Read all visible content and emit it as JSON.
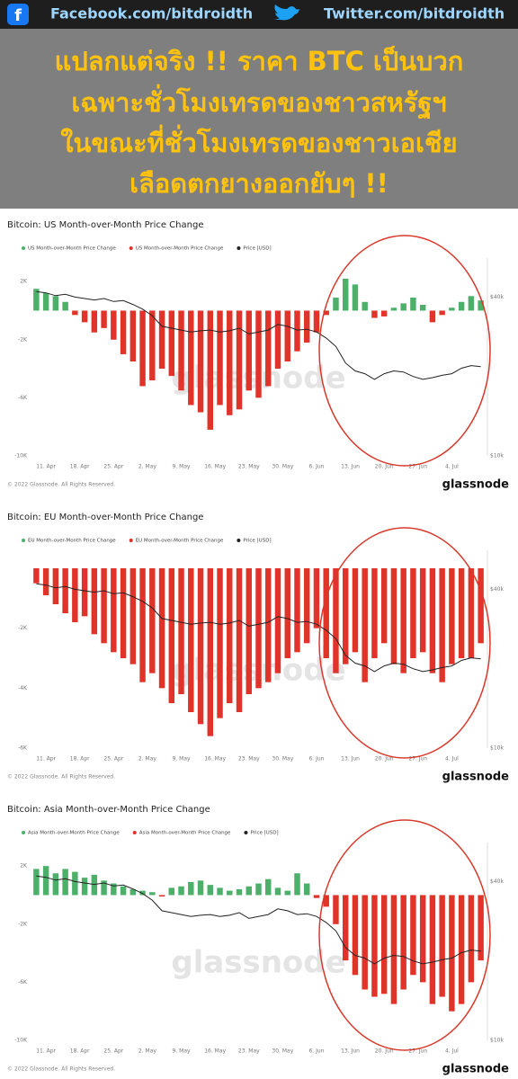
{
  "header": {
    "facebook": "Facebook.com/bitdroidth",
    "twitter": "Twitter.com/bitdroidth",
    "headline": [
      "แปลกแต่จริง !! ราคา BTC เป็นบวก",
      "เฉพาะชั่วโมงเทรดของชาวสหรัฐฯ",
      "ในขณะที่ชั่วโมงเทรดของชาวเอเชีย",
      "เลือดตกยางออกยับๆ !!"
    ]
  },
  "chart_data": [
    {
      "type": "bar",
      "title": "Bitcoin: US Month-over-Month Price Change",
      "watermark": "glassnode",
      "footer": "© 2022 Glassnode. All Rights Reserved.",
      "brand": "glassnode",
      "xlim": [
        -0.5,
        46.5
      ],
      "xticks": [
        {
          "value": 1,
          "label": "11. Apr"
        },
        {
          "value": 4.5,
          "label": "18. Apr"
        },
        {
          "value": 8,
          "label": "25. Apr"
        },
        {
          "value": 11.5,
          "label": "2. May"
        },
        {
          "value": 15,
          "label": "9. May"
        },
        {
          "value": 18.5,
          "label": "16. May"
        },
        {
          "value": 22,
          "label": "23. May"
        },
        {
          "value": 25.5,
          "label": "30. May"
        },
        {
          "value": 29,
          "label": "6. Jun"
        },
        {
          "value": 32.5,
          "label": "13. Jun"
        },
        {
          "value": 36,
          "label": "20. Jun"
        },
        {
          "value": 39.5,
          "label": "27. Jun"
        },
        {
          "value": 43,
          "label": "4. Jul"
        }
      ],
      "ylim": [
        -10000,
        3000
      ],
      "yticks": [
        {
          "value": 2000,
          "label": "2K"
        },
        {
          "value": -2000,
          "label": "-2K"
        },
        {
          "value": -6000,
          "label": "-6K"
        },
        {
          "value": -10000,
          "label": "-10K"
        }
      ],
      "y2lim": [
        10000,
        52000
      ],
      "y2log": true,
      "y2ticks": [
        {
          "value": 10000,
          "label": "$10k"
        },
        {
          "value": 40000,
          "label": "$40k"
        }
      ],
      "series": [
        {
          "name": "US Month-over-Month Price Change",
          "positive_color": "#4caf6a",
          "negative_color": "#e0342b",
          "values": [
            1500,
            1200,
            1000,
            600,
            -300,
            -800,
            -1500,
            -1200,
            -2000,
            -3000,
            -3500,
            -5200,
            -4800,
            -4000,
            -4500,
            -5500,
            -6500,
            -7000,
            -8200,
            -6500,
            -7200,
            -6800,
            -5500,
            -6000,
            -5200,
            -4000,
            -3500,
            -2800,
            -2200,
            -1500,
            -300,
            900,
            2200,
            1800,
            600,
            -500,
            -400,
            200,
            500,
            900,
            400,
            -800,
            -300,
            200,
            600,
            1000,
            700
          ]
        },
        {
          "name": "Price [USD]",
          "color": "#222222",
          "axis": "y2",
          "values": [
            42000,
            41500,
            40500,
            41000,
            40000,
            39500,
            39000,
            39500,
            38500,
            38800,
            37500,
            36000,
            34000,
            31000,
            30500,
            30000,
            29500,
            29800,
            30000,
            29500,
            29800,
            30500,
            29000,
            29500,
            30000,
            31500,
            31000,
            30000,
            30200,
            29500,
            28000,
            26000,
            22500,
            21000,
            20500,
            19500,
            20500,
            21000,
            20800,
            20000,
            19500,
            19800,
            20200,
            20500,
            21500,
            22000,
            21800
          ]
        }
      ]
    },
    {
      "type": "bar",
      "title": "Bitcoin: EU Month-over-Month Price Change",
      "watermark": "glassnode",
      "footer": "© 2022 Glassnode. All Rights Reserved.",
      "brand": "glassnode",
      "xlim": [
        -0.5,
        46.5
      ],
      "xticks": [
        {
          "value": 1,
          "label": "11. Apr"
        },
        {
          "value": 4.5,
          "label": "18. Apr"
        },
        {
          "value": 8,
          "label": "25. Apr"
        },
        {
          "value": 11.5,
          "label": "2. May"
        },
        {
          "value": 15,
          "label": "9. May"
        },
        {
          "value": 18.5,
          "label": "16. May"
        },
        {
          "value": 22,
          "label": "23. May"
        },
        {
          "value": 25.5,
          "label": "30. May"
        },
        {
          "value": 29,
          "label": "6. Jun"
        },
        {
          "value": 32.5,
          "label": "13. Jun"
        },
        {
          "value": 36,
          "label": "20. Jun"
        },
        {
          "value": 39.5,
          "label": "27. Jun"
        },
        {
          "value": 43,
          "label": "4. Jul"
        }
      ],
      "ylim": [
        -6000,
        300
      ],
      "yticks": [
        {
          "value": -2000,
          "label": "-2K"
        },
        {
          "value": -4000,
          "label": "-4K"
        },
        {
          "value": -6000,
          "label": "-6K"
        }
      ],
      "y2lim": [
        10000,
        52000
      ],
      "y2log": true,
      "y2ticks": [
        {
          "value": 10000,
          "label": "$10k"
        },
        {
          "value": 40000,
          "label": "$40k"
        }
      ],
      "series": [
        {
          "name": "EU Month-over-Month Price Change",
          "positive_color": "#4caf6a",
          "negative_color": "#e0342b",
          "values": [
            -500,
            -900,
            -1200,
            -1500,
            -1800,
            -1600,
            -2200,
            -2500,
            -2800,
            -3000,
            -3200,
            -3800,
            -3500,
            -4000,
            -4500,
            -4200,
            -4800,
            -5200,
            -5600,
            -5000,
            -4500,
            -4800,
            -4200,
            -4000,
            -3800,
            -3500,
            -3000,
            -2800,
            -2500,
            -2000,
            -3000,
            -3500,
            -3200,
            -2800,
            -3800,
            -3000,
            -2500,
            -3200,
            -3500,
            -3000,
            -2800,
            -3500,
            -3800,
            -3200,
            -3000,
            -3000,
            -2500
          ]
        },
        {
          "name": "Price [USD]",
          "color": "#222222",
          "axis": "y2",
          "values": [
            42000,
            41500,
            40500,
            41000,
            40000,
            39500,
            39000,
            39500,
            38500,
            38800,
            37500,
            36000,
            34000,
            31000,
            30500,
            30000,
            29500,
            29800,
            30000,
            29500,
            29800,
            30500,
            29000,
            29500,
            30000,
            31500,
            31000,
            30000,
            30200,
            29500,
            28000,
            26000,
            22500,
            21000,
            20500,
            19500,
            20500,
            21000,
            20800,
            20000,
            19500,
            19800,
            20200,
            20500,
            21500,
            22000,
            21800
          ]
        }
      ]
    },
    {
      "type": "bar",
      "title": "Bitcoin: Asia Month-over-Month Price Change",
      "watermark": "glassnode",
      "footer": "© 2022 Glassnode. All Rights Reserved.",
      "brand": "glassnode",
      "xlim": [
        -0.5,
        46.5
      ],
      "xticks": [
        {
          "value": 1,
          "label": "11. Apr"
        },
        {
          "value": 4.5,
          "label": "18. Apr"
        },
        {
          "value": 8,
          "label": "25. Apr"
        },
        {
          "value": 11.5,
          "label": "2. May"
        },
        {
          "value": 15,
          "label": "9. May"
        },
        {
          "value": 18.5,
          "label": "16. May"
        },
        {
          "value": 22,
          "label": "23. May"
        },
        {
          "value": 25.5,
          "label": "30. May"
        },
        {
          "value": 29,
          "label": "6. Jun"
        },
        {
          "value": 32.5,
          "label": "13. Jun"
        },
        {
          "value": 36,
          "label": "20. Jun"
        },
        {
          "value": 39.5,
          "label": "27. Jun"
        },
        {
          "value": 43,
          "label": "4. Jul"
        }
      ],
      "ylim": [
        -10000,
        3000
      ],
      "yticks": [
        {
          "value": 2000,
          "label": "2K"
        },
        {
          "value": -2000,
          "label": "-2K"
        },
        {
          "value": -6000,
          "label": "-6K"
        },
        {
          "value": -10000,
          "label": "-10K"
        }
      ],
      "y2lim": [
        10000,
        52000
      ],
      "y2log": true,
      "y2ticks": [
        {
          "value": 10000,
          "label": "$10k"
        },
        {
          "value": 40000,
          "label": "$40k"
        }
      ],
      "series": [
        {
          "name": "Asia Month-over-Month Price Change",
          "positive_color": "#4caf6a",
          "negative_color": "#e0342b",
          "values": [
            1800,
            2000,
            1500,
            1800,
            1600,
            1200,
            1400,
            1000,
            800,
            600,
            400,
            300,
            200,
            -100,
            500,
            600,
            900,
            1000,
            700,
            500,
            300,
            400,
            600,
            800,
            1100,
            500,
            300,
            1500,
            800,
            -200,
            -800,
            -2000,
            -4500,
            -5500,
            -6500,
            -7000,
            -6800,
            -7500,
            -6500,
            -5500,
            -6000,
            -7500,
            -7000,
            -8000,
            -7500,
            -6000,
            -4500
          ]
        },
        {
          "name": "Price [USD]",
          "color": "#222222",
          "axis": "y2",
          "values": [
            42000,
            41500,
            40500,
            41000,
            40000,
            39500,
            39000,
            39500,
            38500,
            38800,
            37500,
            36000,
            34000,
            31000,
            30500,
            30000,
            29500,
            29800,
            30000,
            29500,
            29800,
            30500,
            29000,
            29500,
            30000,
            31500,
            31000,
            30000,
            30200,
            29500,
            28000,
            26000,
            22500,
            21000,
            20500,
            19500,
            20500,
            21000,
            20800,
            20000,
            19500,
            19800,
            20200,
            20500,
            21500,
            22000,
            21800
          ]
        }
      ]
    }
  ]
}
